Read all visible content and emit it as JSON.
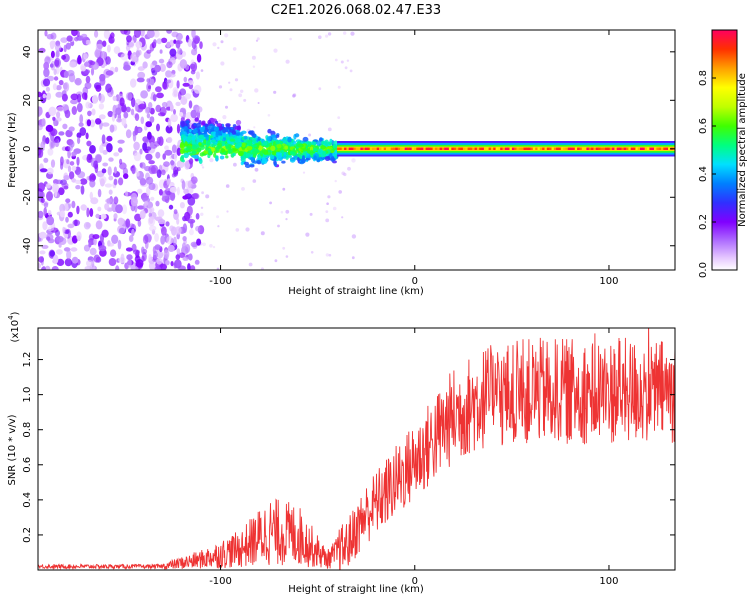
{
  "title": "C2E1.2026.068.02.47.E33",
  "chart_data": [
    {
      "type": "heatmap",
      "name": "spectrogram",
      "xlabel": "Height of straight line (km)",
      "ylabel": "Frequency (Hz)",
      "xlim": [
        -194,
        134
      ],
      "ylim": [
        -50,
        49
      ],
      "xticks": [
        -100,
        0,
        100
      ],
      "yticks": [
        -40,
        -20,
        0,
        20,
        40
      ],
      "grid": false,
      "colorbar": {
        "label": "Normalized spectral amplitude",
        "range": [
          0,
          1
        ],
        "ticks": [
          0.0,
          0.2,
          0.4,
          0.6,
          0.8
        ],
        "tick_labels": [
          "0.0",
          "0.2",
          "0.4",
          "0.6",
          "0.8"
        ],
        "colormap": [
          "#ffffff",
          "#e6c8ff",
          "#b070ff",
          "#8000ff",
          "#3030ff",
          "#0080ff",
          "#00e0ff",
          "#00ff80",
          "#40ff00",
          "#c0ff00",
          "#ffff00",
          "#ffa000",
          "#ff3000",
          "#ff0060"
        ]
      },
      "description_regions": [
        {
          "x_range": [
            -194,
            -120
          ],
          "freq_range": [
            -50,
            49
          ],
          "amplitude": "0.05-0.25 scattered broadband"
        },
        {
          "x_range": [
            -120,
            -40
          ],
          "freq_center": 0,
          "freq_halfwidth_start": 12,
          "freq_halfwidth_end": 5,
          "amplitude": "0.3-0.5"
        },
        {
          "x_range": [
            -40,
            134
          ],
          "freq_center": 0,
          "freq_halfwidth": 3,
          "amplitude": "0.7-1.0"
        }
      ]
    },
    {
      "type": "line",
      "name": "snr",
      "xlabel": "Height of straight line (km)",
      "ylabel": "SNR (10 * v/v)",
      "scale_label": "(x10",
      "scale_exp": "4",
      "xlim": [
        -194,
        134
      ],
      "ylim": [
        0,
        1.38
      ],
      "xticks": [
        -100,
        0,
        100
      ],
      "yticks": [
        0.2,
        0.4,
        0.6,
        0.8,
        1.0,
        1.2
      ],
      "ytick_labels": [
        "0.2",
        "0.4",
        "0.6",
        "0.8",
        "1.0",
        "1.2"
      ],
      "line_color": "#ee3333",
      "series_envelope": [
        {
          "x": -194,
          "y": 0.02
        },
        {
          "x": -130,
          "y": 0.02
        },
        {
          "x": -110,
          "y": 0.06
        },
        {
          "x": -90,
          "y": 0.12
        },
        {
          "x": -75,
          "y": 0.22
        },
        {
          "x": -60,
          "y": 0.2
        },
        {
          "x": -45,
          "y": 0.06
        },
        {
          "x": -35,
          "y": 0.14
        },
        {
          "x": -25,
          "y": 0.32
        },
        {
          "x": -10,
          "y": 0.5
        },
        {
          "x": 5,
          "y": 0.68
        },
        {
          "x": 20,
          "y": 0.88
        },
        {
          "x": 35,
          "y": 0.98
        },
        {
          "x": 60,
          "y": 1.02
        },
        {
          "x": 100,
          "y": 1.02
        },
        {
          "x": 134,
          "y": 1.02
        }
      ]
    }
  ]
}
